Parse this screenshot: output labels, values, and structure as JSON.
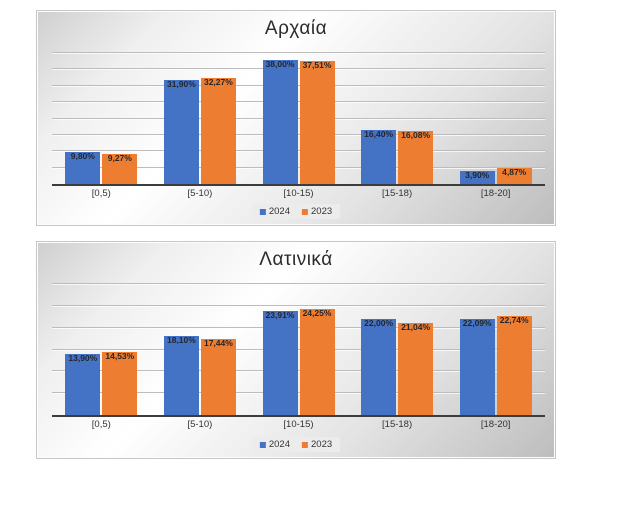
{
  "page": {
    "background": "#ffffff"
  },
  "chart_data": [
    {
      "type": "bar",
      "title": "Αρχαία",
      "categories": [
        "[0,5)",
        "[5-10)",
        "[10-15)",
        "[15-18)",
        "[18-20]"
      ],
      "series": [
        {
          "name": "2024",
          "color": "#4472C4",
          "values": [
            9.8,
            31.9,
            38.0,
            16.4,
            3.9
          ],
          "labels": [
            "9,80%",
            "31,90%",
            "38,00%",
            "16,40%",
            "3,90%"
          ]
        },
        {
          "name": "2023",
          "color": "#ED7D31",
          "values": [
            9.27,
            32.27,
            37.51,
            16.08,
            4.87
          ],
          "labels": [
            "9,27%",
            "32,27%",
            "37,51%",
            "16,08%",
            "4,87%"
          ]
        }
      ],
      "ylim": [
        0,
        40
      ],
      "grid_step": 5,
      "grid": "horizontal",
      "legend_position": "bottom",
      "data_label_position": "inside-end",
      "xlabel": "",
      "ylabel": ""
    },
    {
      "type": "bar",
      "title": "Λατινικά",
      "categories": [
        "[0,5)",
        "[5-10)",
        "[10-15)",
        "[15-18)",
        "[18-20]"
      ],
      "series": [
        {
          "name": "2024",
          "color": "#4472C4",
          "values": [
            13.9,
            18.1,
            23.91,
            22.0,
            22.09
          ],
          "labels": [
            "13,90%",
            "18,10%",
            "23,91%",
            "22,00%",
            "22,09%"
          ]
        },
        {
          "name": "2023",
          "color": "#ED7D31",
          "values": [
            14.53,
            17.44,
            24.25,
            21.04,
            22.74
          ],
          "labels": [
            "14,53%",
            "17,44%",
            "24,25%",
            "21,04%",
            "22,74%"
          ]
        }
      ],
      "ylim": [
        0,
        30
      ],
      "grid_step": 5,
      "grid": "horizontal",
      "legend_position": "bottom",
      "data_label_position": "inside-end",
      "xlabel": "",
      "ylabel": ""
    }
  ]
}
